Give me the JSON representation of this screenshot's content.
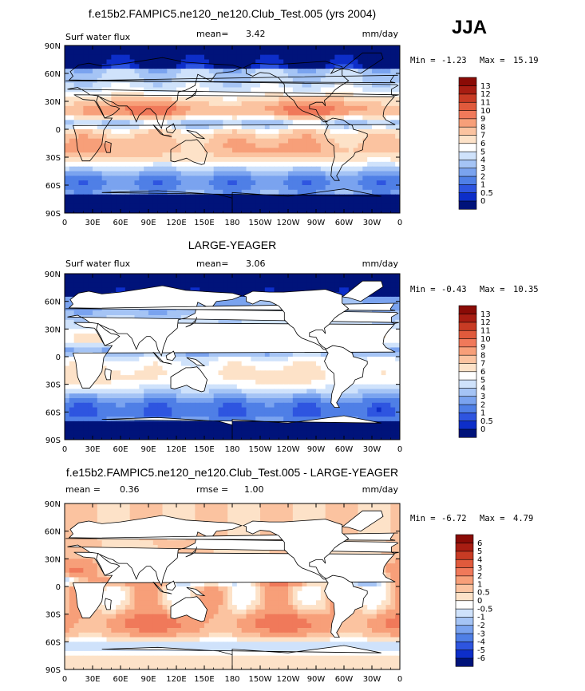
{
  "season": "JJA",
  "colors": {
    "ocean_scale": [
      "#00137a",
      "#0d2ec9",
      "#2e55e0",
      "#4f7fe6",
      "#7aa3ef",
      "#a5c4f5",
      "#cfe2fb",
      "#ffffff",
      "#fde2c8",
      "#fbc3a0",
      "#f79f79",
      "#f0795a",
      "#e05a3c",
      "#c83b24",
      "#a81d12",
      "#8a0b06"
    ],
    "diff_scale": [
      "#00137a",
      "#0d2ec9",
      "#2e55e0",
      "#4f7fe6",
      "#7aa3ef",
      "#a5c4f5",
      "#cfe2fb",
      "#ffffff",
      "#fde2c8",
      "#fbc3a0",
      "#f79f79",
      "#f0795a",
      "#e05a3c",
      "#c83b24",
      "#a81d12",
      "#8a0b06"
    ],
    "land": "#ffffff",
    "coast": "#000000"
  },
  "chart_data": [
    {
      "type": "heatmap",
      "title": "f.e15b2.FAMPIC5.ne120_ne120.Club_Test.005 (yrs 2004)",
      "left_label": "Surf water flux",
      "stat1_label": "mean=",
      "stat1_value": "3.42",
      "stat2_label": "",
      "stat2_value": "",
      "units": "mm/day",
      "min_label": "Min =",
      "min_value": "-1.23",
      "max_label": "Max =",
      "max_value": "15.19",
      "xticks": [
        "0",
        "30E",
        "60E",
        "90E",
        "120E",
        "150E",
        "180",
        "150W",
        "120W",
        "90W",
        "60W",
        "30W",
        "0"
      ],
      "yticks": [
        "90N",
        "60N",
        "30N",
        "0",
        "30S",
        "60S",
        "90S"
      ],
      "xlim": [
        0,
        360
      ],
      "ylim": [
        -90,
        90
      ],
      "colorbar_levels": [
        "0",
        "0.5",
        "1",
        "2",
        "3",
        "4",
        "5",
        "6",
        "7",
        "8",
        "9",
        "10",
        "11",
        "12",
        "13"
      ],
      "land_masked": false,
      "field": "model"
    },
    {
      "type": "heatmap",
      "title": "LARGE-YEAGER",
      "left_label": "Surf water flux",
      "stat1_label": "mean=",
      "stat1_value": "3.06",
      "stat2_label": "",
      "stat2_value": "",
      "units": "mm/day",
      "min_label": "Min =",
      "min_value": "-0.43",
      "max_label": "Max =",
      "max_value": "10.35",
      "xticks": [
        "0",
        "30E",
        "60E",
        "90E",
        "120E",
        "150E",
        "180",
        "150W",
        "120W",
        "90W",
        "60W",
        "30W",
        "0"
      ],
      "yticks": [
        "90N",
        "60N",
        "30N",
        "0",
        "30S",
        "60S",
        "90S"
      ],
      "xlim": [
        0,
        360
      ],
      "ylim": [
        -90,
        90
      ],
      "colorbar_levels": [
        "0",
        "0.5",
        "1",
        "2",
        "3",
        "4",
        "5",
        "6",
        "7",
        "8",
        "9",
        "10",
        "11",
        "12",
        "13"
      ],
      "land_masked": true,
      "field": "obs"
    },
    {
      "type": "heatmap",
      "title": "f.e15b2.FAMPIC5.ne120_ne120.Club_Test.005 - LARGE-YEAGER",
      "left_label": "",
      "stat1_label": "mean =",
      "stat1_value": "0.36",
      "stat2_label": "rmse =",
      "stat2_value": "1.00",
      "units": "mm/day",
      "min_label": "Min =",
      "min_value": "-6.72",
      "max_label": "Max =",
      "max_value": "4.79",
      "xticks": [
        "0",
        "30E",
        "60E",
        "90E",
        "120E",
        "150E",
        "180",
        "150W",
        "120W",
        "90W",
        "60W",
        "30W",
        "0"
      ],
      "yticks": [
        "90N",
        "60N",
        "30N",
        "0",
        "30S",
        "60S",
        "90S"
      ],
      "xlim": [
        0,
        360
      ],
      "ylim": [
        -90,
        90
      ],
      "colorbar_levels": [
        "-6",
        "-5",
        "-4",
        "-3",
        "-2",
        "-1",
        "-0.5",
        "0",
        "0.5",
        "1",
        "2",
        "3",
        "4",
        "5",
        "6"
      ],
      "land_masked": true,
      "field": "diff"
    }
  ]
}
